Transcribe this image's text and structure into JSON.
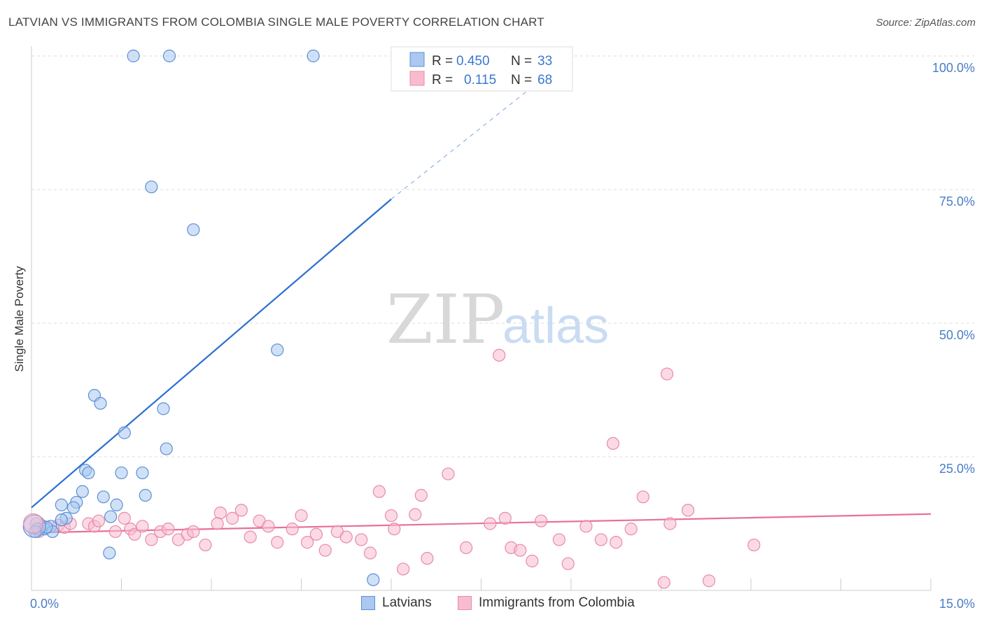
{
  "title": "LATVIAN VS IMMIGRANTS FROM COLOMBIA SINGLE MALE POVERTY CORRELATION CHART",
  "source": "Source: ZipAtlas.com",
  "watermark": {
    "zip": "ZIP",
    "atlas": "atlas"
  },
  "chart_data": {
    "type": "scatter",
    "title": "LATVIAN VS IMMIGRANTS FROM COLOMBIA SINGLE MALE POVERTY CORRELATION CHART",
    "ylabel": "Single Male Poverty",
    "xlabel": "",
    "xlim": [
      0,
      15
    ],
    "ylim": [
      0,
      100
    ],
    "x_tick_labels": [
      {
        "value": 0,
        "label": "0.0%"
      },
      {
        "value": 15,
        "label": "15.0%"
      }
    ],
    "y_tick_labels": [
      {
        "value": 100,
        "label": "100.0%"
      },
      {
        "value": 75,
        "label": "75.0%"
      },
      {
        "value": 50,
        "label": "50.0%"
      },
      {
        "value": 25,
        "label": "25.0%"
      }
    ],
    "grid": true,
    "legend": {
      "position": "top-center",
      "entries": [
        {
          "series": "Latvians",
          "r_label": "R =",
          "r_value": "0.450",
          "n_label": "N =",
          "n_value": "33",
          "color": "#aac8f0",
          "stroke": "#5b8fd6"
        },
        {
          "series": "Immigrants from Colombia",
          "r_label": "R =",
          "r_value": "0.115",
          "n_label": "N =",
          "n_value": "68",
          "color": "#f7bcd0",
          "stroke": "#e88aaa"
        }
      ]
    },
    "series": [
      {
        "name": "Latvians",
        "fill": "#aac8f0",
        "stroke": "#5b8fd6",
        "trend": {
          "color": "#2a6fcf",
          "x0": 0,
          "y0": 15.5,
          "x1": 6.0,
          "y1": 73.2,
          "dash_x1": 9.0,
          "dash_y1": 100
        },
        "points": [
          [
            1.7,
            100
          ],
          [
            2.3,
            100
          ],
          [
            4.7,
            100
          ],
          [
            2.0,
            75.5
          ],
          [
            2.7,
            67.5
          ],
          [
            4.1,
            45.0
          ],
          [
            1.05,
            36.5
          ],
          [
            1.15,
            35.0
          ],
          [
            2.2,
            34.0
          ],
          [
            1.55,
            29.5
          ],
          [
            2.25,
            26.5
          ],
          [
            0.9,
            22.5
          ],
          [
            0.95,
            22.0
          ],
          [
            1.5,
            22.0
          ],
          [
            1.85,
            22.0
          ],
          [
            0.85,
            18.5
          ],
          [
            1.2,
            17.5
          ],
          [
            1.9,
            17.8
          ],
          [
            0.75,
            16.5
          ],
          [
            0.5,
            16.0
          ],
          [
            1.42,
            16.0
          ],
          [
            0.7,
            15.5
          ],
          [
            0.58,
            13.5
          ],
          [
            0.5,
            13.2
          ],
          [
            1.32,
            13.8
          ],
          [
            0.32,
            12.0
          ],
          [
            0.22,
            11.5
          ],
          [
            0.1,
            11.5
          ],
          [
            0.35,
            11.0
          ],
          [
            0.25,
            11.8
          ],
          [
            0.06,
            11.0
          ],
          [
            1.3,
            7.0
          ],
          [
            5.7,
            2.0
          ]
        ]
      },
      {
        "name": "Immigrants from Colombia",
        "fill": "#f7bcd0",
        "stroke": "#e88aaa",
        "trend": {
          "color": "#e8709a",
          "x0": 0,
          "y0": 10.8,
          "x1": 15,
          "y1": 14.3
        },
        "points": [
          [
            7.8,
            44.0
          ],
          [
            10.6,
            40.5
          ],
          [
            9.7,
            27.5
          ],
          [
            6.95,
            21.8
          ],
          [
            5.8,
            18.5
          ],
          [
            6.5,
            17.8
          ],
          [
            10.2,
            17.5
          ],
          [
            3.15,
            14.5
          ],
          [
            3.5,
            15.0
          ],
          [
            10.95,
            15.0
          ],
          [
            6.0,
            14.0
          ],
          [
            6.4,
            14.2
          ],
          [
            0.95,
            12.5
          ],
          [
            1.05,
            12.0
          ],
          [
            1.12,
            13.0
          ],
          [
            1.4,
            11.0
          ],
          [
            1.55,
            13.5
          ],
          [
            1.65,
            11.5
          ],
          [
            1.72,
            10.5
          ],
          [
            1.85,
            12.0
          ],
          [
            2.0,
            9.5
          ],
          [
            2.15,
            11.0
          ],
          [
            2.28,
            11.5
          ],
          [
            2.45,
            9.5
          ],
          [
            2.6,
            10.5
          ],
          [
            2.7,
            11.0
          ],
          [
            2.9,
            8.5
          ],
          [
            3.1,
            12.5
          ],
          [
            3.35,
            13.5
          ],
          [
            3.65,
            10.0
          ],
          [
            3.8,
            13.0
          ],
          [
            3.95,
            12.0
          ],
          [
            4.1,
            9.0
          ],
          [
            4.35,
            11.5
          ],
          [
            4.5,
            14.0
          ],
          [
            4.6,
            9.0
          ],
          [
            4.75,
            10.5
          ],
          [
            4.9,
            7.5
          ],
          [
            5.1,
            11.0
          ],
          [
            5.25,
            10.0
          ],
          [
            5.5,
            9.5
          ],
          [
            5.65,
            7.0
          ],
          [
            6.05,
            11.5
          ],
          [
            6.2,
            4.0
          ],
          [
            6.6,
            6.0
          ],
          [
            7.25,
            8.0
          ],
          [
            7.65,
            12.5
          ],
          [
            7.9,
            13.5
          ],
          [
            8.0,
            8.0
          ],
          [
            8.15,
            7.5
          ],
          [
            8.35,
            5.5
          ],
          [
            8.5,
            13.0
          ],
          [
            8.8,
            9.5
          ],
          [
            8.95,
            5.0
          ],
          [
            9.25,
            12.0
          ],
          [
            9.5,
            9.5
          ],
          [
            9.75,
            9.0
          ],
          [
            10.0,
            11.5
          ],
          [
            10.55,
            1.5
          ],
          [
            10.65,
            12.5
          ],
          [
            11.3,
            1.8
          ],
          [
            12.05,
            8.5
          ],
          [
            0.45,
            12.2
          ],
          [
            0.55,
            11.8
          ],
          [
            0.65,
            12.5
          ],
          [
            0.2,
            12.0
          ],
          [
            0.12,
            11.0
          ],
          [
            0.08,
            12.5
          ]
        ]
      }
    ]
  }
}
